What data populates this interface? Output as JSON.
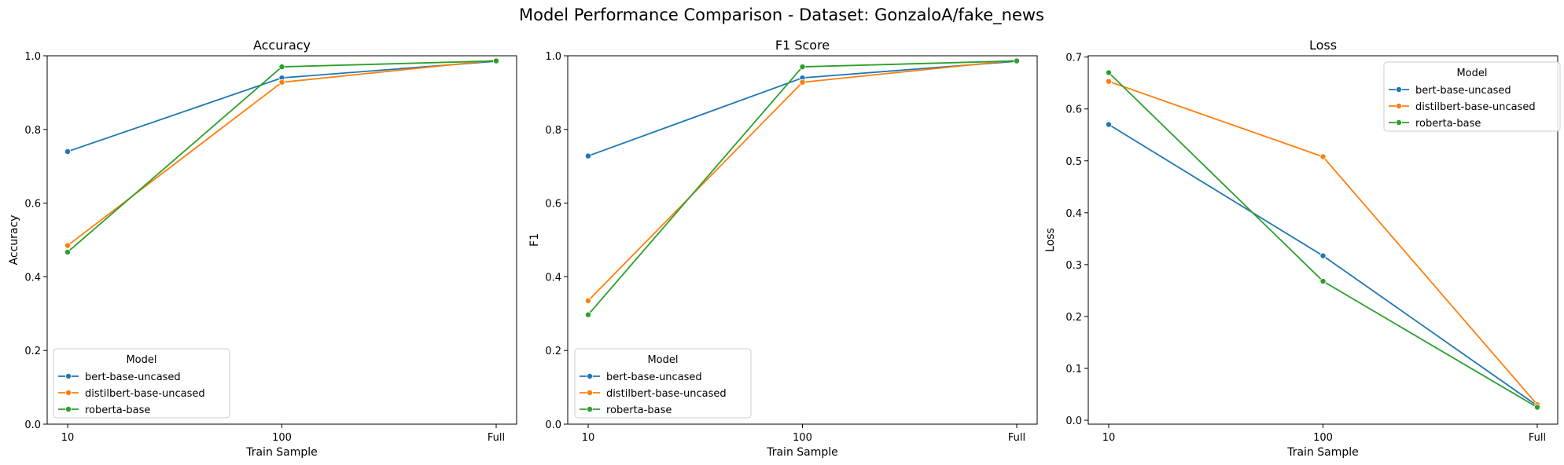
{
  "title": "Model Performance Comparison - Dataset: GonzaloA/fake_news",
  "colors": {
    "bert-base-uncased": "#1f77b4",
    "distilbert-base-uncased": "#ff7f0e",
    "roberta-base": "#2ca02c"
  },
  "chart_data": [
    {
      "type": "line",
      "title": "Accuracy",
      "xlabel": "Train Sample",
      "ylabel": "Accuracy",
      "categories": [
        "10",
        "100",
        "Full"
      ],
      "ylim": [
        0,
        1.0
      ],
      "yticks": [
        "0.0",
        "0.2",
        "0.4",
        "0.6",
        "0.8",
        "1.0"
      ],
      "ytick_values": [
        0,
        0.2,
        0.4,
        0.6,
        0.8,
        1.0
      ],
      "legend_title": "Model",
      "legend_position": "lower-left",
      "series": [
        {
          "name": "bert-base-uncased",
          "values": [
            0.74,
            0.94,
            0.985
          ]
        },
        {
          "name": "distilbert-base-uncased",
          "values": [
            0.485,
            0.928,
            0.988
          ]
        },
        {
          "name": "roberta-base",
          "values": [
            0.467,
            0.97,
            0.986
          ]
        }
      ]
    },
    {
      "type": "line",
      "title": "F1 Score",
      "xlabel": "Train Sample",
      "ylabel": "F1",
      "categories": [
        "10",
        "100",
        "Full"
      ],
      "ylim": [
        0,
        1.0
      ],
      "yticks": [
        "0.0",
        "0.2",
        "0.4",
        "0.6",
        "0.8",
        "1.0"
      ],
      "ytick_values": [
        0,
        0.2,
        0.4,
        0.6,
        0.8,
        1.0
      ],
      "legend_title": "Model",
      "legend_position": "lower-left",
      "series": [
        {
          "name": "bert-base-uncased",
          "values": [
            0.728,
            0.94,
            0.985
          ]
        },
        {
          "name": "distilbert-base-uncased",
          "values": [
            0.335,
            0.928,
            0.988
          ]
        },
        {
          "name": "roberta-base",
          "values": [
            0.297,
            0.97,
            0.986
          ]
        }
      ]
    },
    {
      "type": "line",
      "title": "Loss",
      "xlabel": "Train Sample",
      "ylabel": "Loss",
      "categories": [
        "10",
        "100",
        "Full"
      ],
      "ylim": [
        -0.0075,
        0.7025
      ],
      "yticks": [
        "0.0",
        "0.1",
        "0.2",
        "0.3",
        "0.4",
        "0.5",
        "0.6",
        "0.7"
      ],
      "ytick_values": [
        0,
        0.1,
        0.2,
        0.3,
        0.4,
        0.5,
        0.6,
        0.7
      ],
      "legend_title": "Model",
      "legend_position": "upper-right",
      "series": [
        {
          "name": "bert-base-uncased",
          "values": [
            0.57,
            0.317,
            0.028
          ]
        },
        {
          "name": "distilbert-base-uncased",
          "values": [
            0.653,
            0.508,
            0.03
          ]
        },
        {
          "name": "roberta-base",
          "values": [
            0.67,
            0.268,
            0.025
          ]
        }
      ]
    }
  ]
}
